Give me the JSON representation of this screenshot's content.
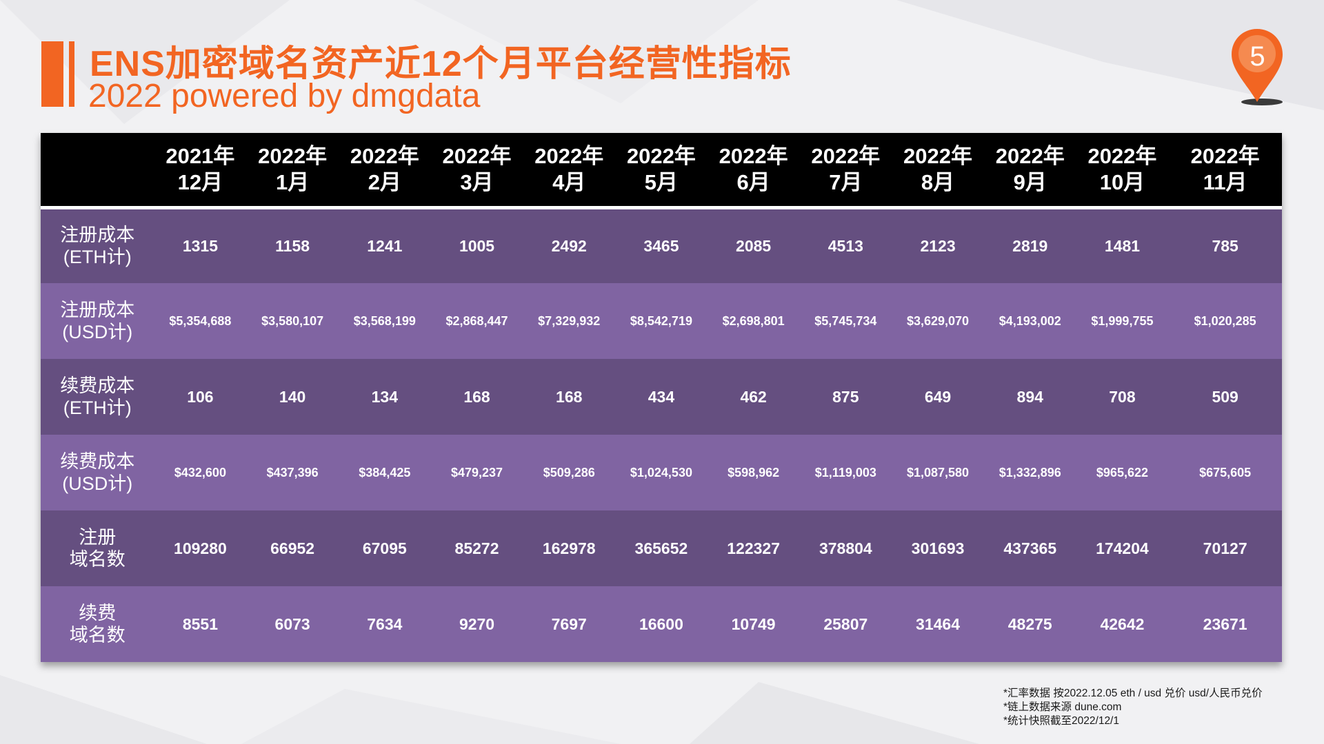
{
  "header": {
    "title": "ENS加密域名资产近12个月平台经营性指标",
    "subtitle": "2022 powered by dmgdata",
    "page_number": "5"
  },
  "colors": {
    "accent": "#f26522",
    "header_bg": "#000000",
    "row_dark": "#654f80",
    "row_light": "#8064a2"
  },
  "table": {
    "columns": [
      {
        "year": "2021年",
        "month": "12月"
      },
      {
        "year": "2022年",
        "month": "1月"
      },
      {
        "year": "2022年",
        "month": "2月"
      },
      {
        "year": "2022年",
        "month": "3月"
      },
      {
        "year": "2022年",
        "month": "4月"
      },
      {
        "year": "2022年",
        "month": "5月"
      },
      {
        "year": "2022年",
        "month": "6月"
      },
      {
        "year": "2022年",
        "month": "7月"
      },
      {
        "year": "2022年",
        "month": "8月"
      },
      {
        "year": "2022年",
        "month": "9月"
      },
      {
        "year": "2022年",
        "month": "10月"
      },
      {
        "year": "2022年",
        "month": "11月"
      }
    ],
    "rows": [
      {
        "label_line1": "注册成本",
        "label_line2": "(ETH计)",
        "values": [
          "1315",
          "1158",
          "1241",
          "1005",
          "2492",
          "3465",
          "2085",
          "4513",
          "2123",
          "2819",
          "1481",
          "785"
        ]
      },
      {
        "label_line1": "注册成本",
        "label_line2": "(USD计)",
        "values": [
          "$5,354,688",
          "$3,580,107",
          "$3,568,199",
          "$2,868,447",
          "$7,329,932",
          "$8,542,719",
          "$2,698,801",
          "$5,745,734",
          "$3,629,070",
          "$4,193,002",
          "$1,999,755",
          "$1,020,285"
        ]
      },
      {
        "label_line1": "续费成本",
        "label_line2": "(ETH计)",
        "values": [
          "106",
          "140",
          "134",
          "168",
          "168",
          "434",
          "462",
          "875",
          "649",
          "894",
          "708",
          "509"
        ]
      },
      {
        "label_line1": "续费成本",
        "label_line2": "(USD计)",
        "values": [
          "$432,600",
          "$437,396",
          "$384,425",
          "$479,237",
          "$509,286",
          "$1,024,530",
          "$598,962",
          "$1,119,003",
          "$1,087,580",
          "$1,332,896",
          "$965,622",
          "$675,605"
        ]
      },
      {
        "label_line1": "注册",
        "label_line2": "域名数",
        "values": [
          "109280",
          "66952",
          "67095",
          "85272",
          "162978",
          "365652",
          "122327",
          "378804",
          "301693",
          "437365",
          "174204",
          "70127"
        ]
      },
      {
        "label_line1": "续费",
        "label_line2": "域名数",
        "values": [
          "8551",
          "6073",
          "7634",
          "9270",
          "7697",
          "16600",
          "10749",
          "25807",
          "31464",
          "48275",
          "42642",
          "23671"
        ]
      }
    ]
  },
  "footnotes": [
    "*汇率数据 按2022.12.05 eth / usd 兑价 usd/人民币兑价",
    "*链上数据来源 dune.com",
    "*统计快照截至2022/12/1"
  ]
}
